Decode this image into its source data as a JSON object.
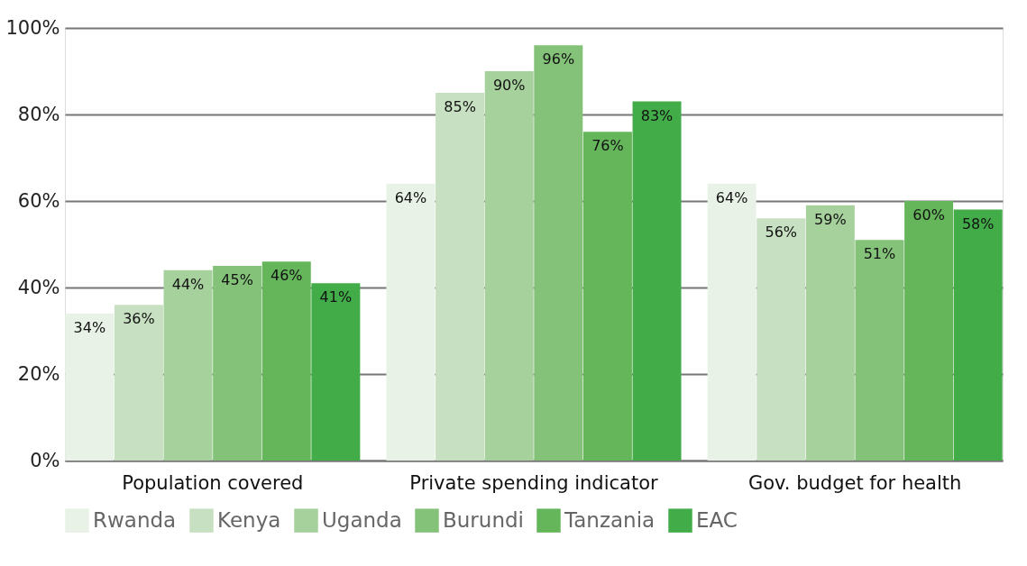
{
  "chart_data": {
    "type": "bar",
    "categories": [
      "Population covered",
      "Private spending indicator",
      "Gov. budget for health"
    ],
    "series": [
      {
        "name": "Rwanda",
        "color": "#e8f2e6",
        "values": [
          34,
          64,
          64
        ],
        "value_labels": [
          "34%",
          "64%",
          "64%"
        ]
      },
      {
        "name": "Kenya",
        "color": "#c8e0c2",
        "values": [
          36,
          85,
          56
        ],
        "value_labels": [
          "36%",
          "85%",
          "56%"
        ]
      },
      {
        "name": "Uganda",
        "color": "#a6d09c",
        "values": [
          44,
          90,
          59
        ],
        "value_labels": [
          "44%",
          "90%",
          "59%"
        ]
      },
      {
        "name": "Burundi",
        "color": "#84c27a",
        "values": [
          45,
          96,
          51
        ],
        "value_labels": [
          "45%",
          "96%",
          "51%"
        ]
      },
      {
        "name": "Tanzania",
        "color": "#65b65b",
        "values": [
          46,
          76,
          60
        ],
        "value_labels": [
          "46%",
          "76%",
          "60%"
        ]
      },
      {
        "name": "EAC",
        "color": "#42ac48",
        "values": [
          41,
          83,
          58
        ],
        "value_labels": [
          "41%",
          "83%",
          "58%"
        ]
      }
    ],
    "ylim": [
      0,
      100
    ],
    "yticks": [
      {
        "value": 0,
        "label": "0%"
      },
      {
        "value": 20,
        "label": "20%"
      },
      {
        "value": 40,
        "label": "40%"
      },
      {
        "value": 60,
        "label": "60%"
      },
      {
        "value": 80,
        "label": "80%"
      },
      {
        "value": 100,
        "label": "100%"
      }
    ],
    "grid": "y",
    "legend": "bottom"
  }
}
